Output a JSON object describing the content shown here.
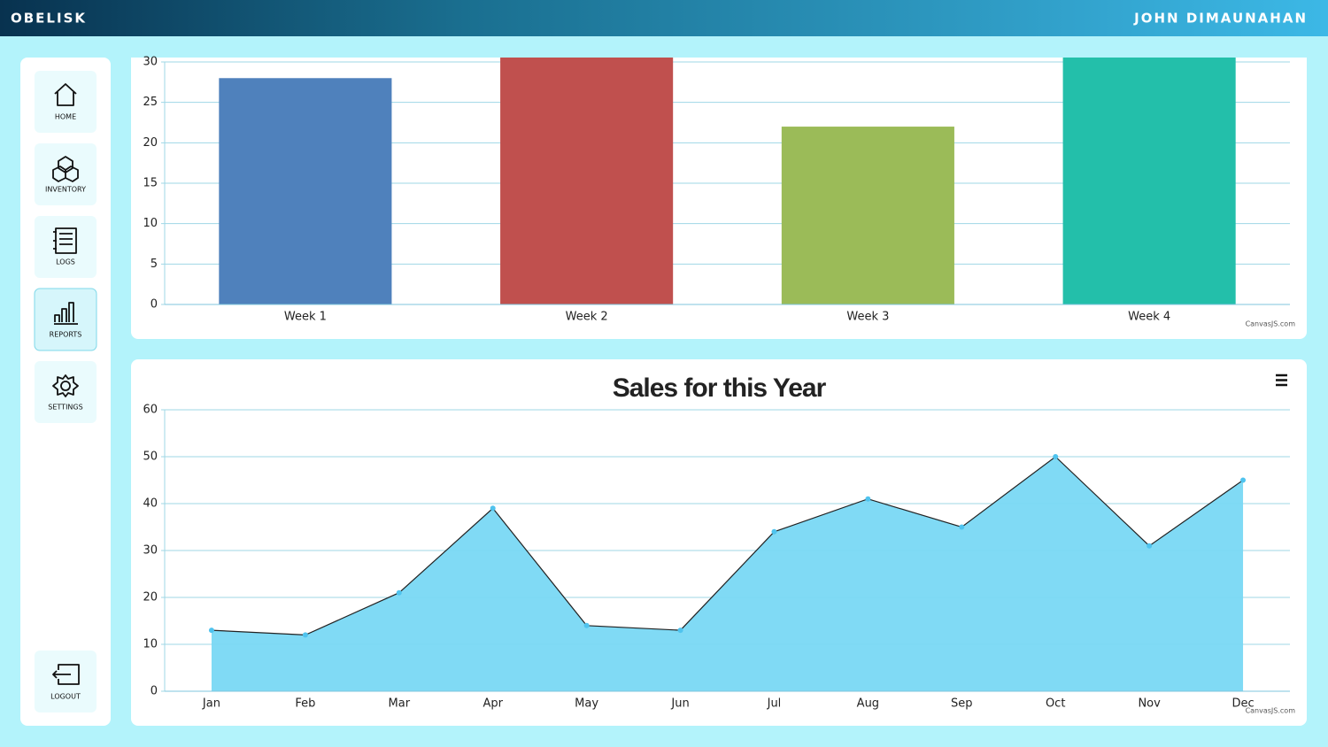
{
  "header": {
    "brand": "OBELISK",
    "user": "JOHN DIMAUNAHAN"
  },
  "nav": {
    "items": [
      "HOME",
      "INVENTORY",
      "LOGS",
      "REPORTS",
      "SETTINGS"
    ],
    "logout": "LOGOUT"
  },
  "chart_data": [
    {
      "type": "bar",
      "categories": [
        "Week 1",
        "Week 2",
        "Week 3",
        "Week 4"
      ],
      "values": [
        28,
        31,
        22,
        31
      ],
      "colors": [
        "#4f81bc",
        "#c0504e",
        "#9bbb58",
        "#23bfaa"
      ],
      "ylim": [
        0,
        30
      ],
      "yticks": [
        0,
        5,
        10,
        15,
        20,
        25,
        30
      ],
      "grid": true,
      "credit": "CanvasJS.com"
    },
    {
      "type": "area",
      "title": "Sales for this Year",
      "categories": [
        "Jan",
        "Feb",
        "Mar",
        "Apr",
        "May",
        "Jun",
        "Jul",
        "Aug",
        "Sep",
        "Oct",
        "Nov",
        "Dec"
      ],
      "values": [
        13,
        12,
        21,
        39,
        14,
        13,
        34,
        41,
        35,
        50,
        31,
        45
      ],
      "color": "#79d8f4",
      "line_color": "#222222",
      "ylim": [
        0,
        60
      ],
      "yticks": [
        0,
        10,
        20,
        30,
        40,
        50,
        60
      ],
      "grid": true,
      "credit": "CanvasJS.com"
    }
  ]
}
